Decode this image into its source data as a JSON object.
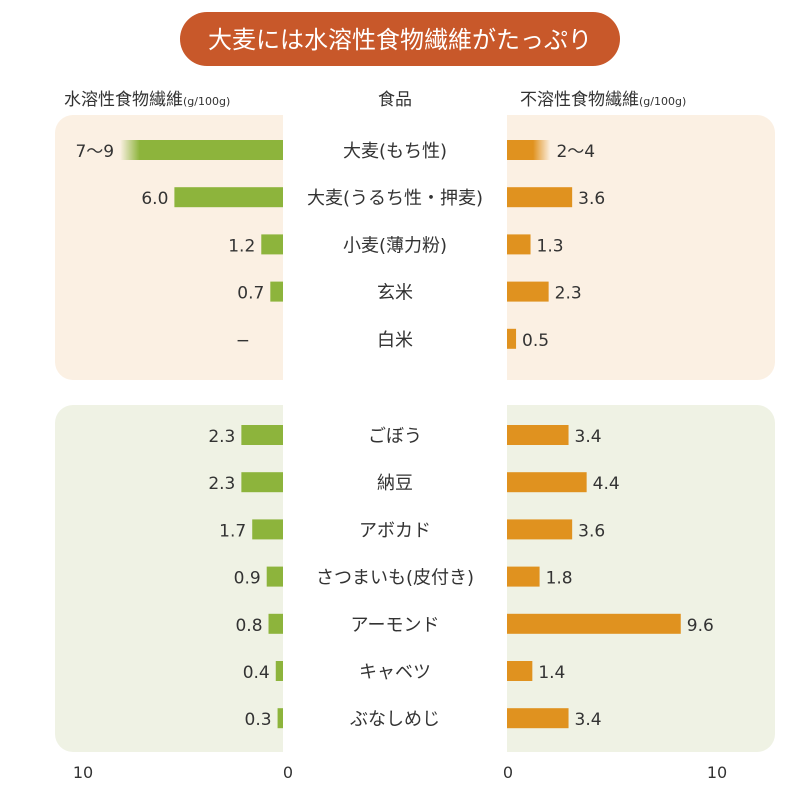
{
  "chart_data": {
    "type": "bar",
    "title": "大麦には水溶性食物繊維がたっぷり",
    "category_header": "食品",
    "left_axis_label": "水溶性食物繊維",
    "right_axis_label": "不溶性食物繊維",
    "unit": "(g/100g)",
    "xlim": [
      0,
      10
    ],
    "ticks": [
      "10",
      "0",
      "0",
      "10"
    ],
    "colors": {
      "title_bg": "#c8582a",
      "soluble": "#8db43c",
      "insoluble": "#e0921f",
      "group1_bg": "#fbf0e3",
      "group2_bg": "#eff2e4"
    },
    "groups": [
      {
        "rows": [
          {
            "category": "大麦(もち性)",
            "soluble": [
              7,
              9
            ],
            "soluble_label": "7〜9",
            "insoluble": [
              2,
              4
            ],
            "insoluble_label": "2〜4"
          },
          {
            "category": "大麦(うるち性・押麦)",
            "soluble": 6.0,
            "soluble_label": "6.0",
            "insoluble": 3.6,
            "insoluble_label": "3.6"
          },
          {
            "category": "小麦(薄力粉)",
            "soluble": 1.2,
            "soluble_label": "1.2",
            "insoluble": 1.3,
            "insoluble_label": "1.3"
          },
          {
            "category": "玄米",
            "soluble": 0.7,
            "soluble_label": "0.7",
            "insoluble": 2.3,
            "insoluble_label": "2.3"
          },
          {
            "category": "白米",
            "soluble": null,
            "soluble_label": "−",
            "insoluble": 0.5,
            "insoluble_label": "0.5"
          }
        ]
      },
      {
        "rows": [
          {
            "category": "ごぼう",
            "soluble": 2.3,
            "soluble_label": "2.3",
            "insoluble": 3.4,
            "insoluble_label": "3.4"
          },
          {
            "category": "納豆",
            "soluble": 2.3,
            "soluble_label": "2.3",
            "insoluble": 4.4,
            "insoluble_label": "4.4"
          },
          {
            "category": "アボカド",
            "soluble": 1.7,
            "soluble_label": "1.7",
            "insoluble": 3.6,
            "insoluble_label": "3.6"
          },
          {
            "category": "さつまいも(皮付き)",
            "soluble": 0.9,
            "soluble_label": "0.9",
            "insoluble": 1.8,
            "insoluble_label": "1.8"
          },
          {
            "category": "アーモンド",
            "soluble": 0.8,
            "soluble_label": "0.8",
            "insoluble": 9.6,
            "insoluble_label": "9.6"
          },
          {
            "category": "キャベツ",
            "soluble": 0.4,
            "soluble_label": "0.4",
            "insoluble": 1.4,
            "insoluble_label": "1.4"
          },
          {
            "category": "ぶなしめじ",
            "soluble": 0.3,
            "soluble_label": "0.3",
            "insoluble": 3.4,
            "insoluble_label": "3.4"
          }
        ]
      }
    ]
  }
}
